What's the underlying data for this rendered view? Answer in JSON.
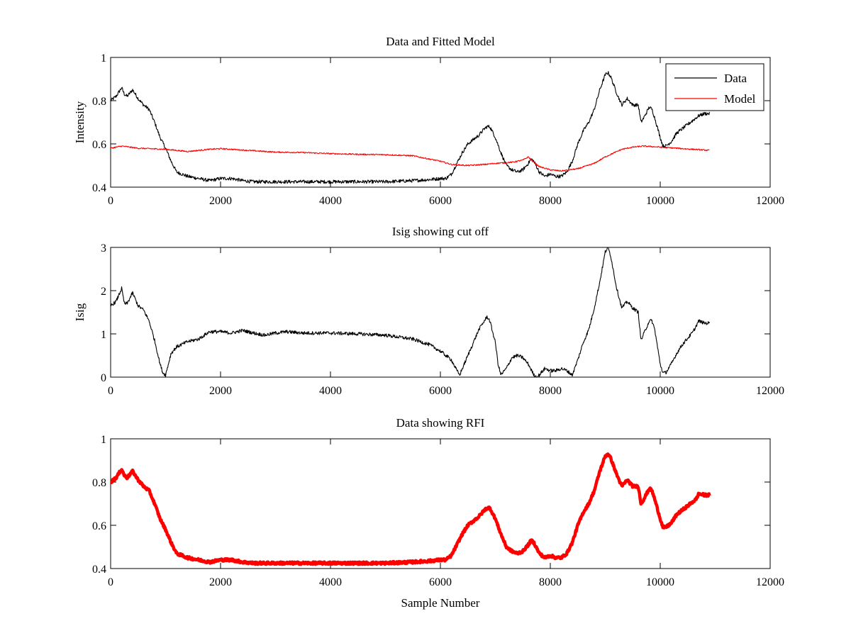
{
  "chart_data": [
    {
      "type": "line",
      "title": "Data and Fitted Model",
      "xlabel": "",
      "ylabel": "Intensity",
      "xlim": [
        0,
        12000
      ],
      "ylim": [
        0.4,
        1
      ],
      "xticks": [
        0,
        2000,
        4000,
        6000,
        8000,
        10000,
        12000
      ],
      "yticks": [
        0.4,
        0.6,
        0.8,
        1
      ],
      "ytick_labels": [
        "0.4",
        "0.6",
        "0.8",
        "1"
      ],
      "grid": false,
      "legend": "top-right",
      "series": [
        {
          "name": "Data",
          "color": "#000000",
          "noise": 0.008,
          "x": [
            0,
            100,
            200,
            250,
            300,
            400,
            500,
            600,
            700,
            800,
            900,
            1000,
            1100,
            1200,
            1400,
            1600,
            1800,
            2000,
            2200,
            2400,
            2600,
            3000,
            3500,
            4000,
            4500,
            5000,
            5500,
            5800,
            6000,
            6100,
            6200,
            6300,
            6400,
            6500,
            6600,
            6700,
            6800,
            6850,
            6900,
            7000,
            7100,
            7200,
            7300,
            7400,
            7500,
            7600,
            7650,
            7700,
            7800,
            7900,
            8000,
            8100,
            8200,
            8300,
            8400,
            8500,
            8600,
            8700,
            8800,
            8900,
            9000,
            9050,
            9100,
            9200,
            9300,
            9400,
            9500,
            9600,
            9650,
            9700,
            9800,
            9850,
            9900,
            10000,
            10050,
            10100,
            10200,
            10300,
            10400,
            10500,
            10600,
            10700,
            10800,
            10900
          ],
          "y": [
            0.8,
            0.82,
            0.86,
            0.83,
            0.82,
            0.85,
            0.81,
            0.78,
            0.76,
            0.7,
            0.63,
            0.58,
            0.52,
            0.47,
            0.45,
            0.44,
            0.43,
            0.44,
            0.44,
            0.43,
            0.425,
            0.425,
            0.425,
            0.425,
            0.425,
            0.425,
            0.43,
            0.435,
            0.44,
            0.44,
            0.46,
            0.51,
            0.56,
            0.6,
            0.62,
            0.64,
            0.67,
            0.68,
            0.68,
            0.63,
            0.56,
            0.5,
            0.48,
            0.47,
            0.48,
            0.51,
            0.53,
            0.52,
            0.47,
            0.45,
            0.46,
            0.45,
            0.45,
            0.47,
            0.52,
            0.6,
            0.66,
            0.7,
            0.76,
            0.85,
            0.92,
            0.93,
            0.91,
            0.84,
            0.78,
            0.81,
            0.78,
            0.78,
            0.7,
            0.72,
            0.77,
            0.76,
            0.72,
            0.63,
            0.59,
            0.59,
            0.61,
            0.65,
            0.67,
            0.69,
            0.71,
            0.73,
            0.74,
            0.74
          ]
        },
        {
          "name": "Model",
          "color": "#ff0000",
          "noise": 0.003,
          "x": [
            0,
            200,
            500,
            1000,
            1200,
            1400,
            1800,
            2000,
            2200,
            2500,
            3000,
            3500,
            4000,
            4500,
            5000,
            5500,
            6000,
            6200,
            6500,
            6800,
            7000,
            7300,
            7500,
            7600,
            7700,
            7800,
            8000,
            8200,
            8500,
            8800,
            9000,
            9300,
            9500,
            9700,
            10000,
            10300,
            10600,
            10900
          ],
          "y": [
            0.58,
            0.59,
            0.58,
            0.575,
            0.57,
            0.565,
            0.575,
            0.578,
            0.575,
            0.57,
            0.562,
            0.56,
            0.555,
            0.552,
            0.55,
            0.545,
            0.52,
            0.505,
            0.5,
            0.505,
            0.51,
            0.515,
            0.525,
            0.54,
            0.515,
            0.495,
            0.48,
            0.475,
            0.485,
            0.51,
            0.54,
            0.575,
            0.585,
            0.59,
            0.585,
            0.58,
            0.575,
            0.57
          ]
        }
      ]
    },
    {
      "type": "line",
      "title": "Isig showing cut off",
      "xlabel": "",
      "ylabel": "Isig",
      "xlim": [
        0,
        12000
      ],
      "ylim": [
        0,
        3
      ],
      "xticks": [
        0,
        2000,
        4000,
        6000,
        8000,
        10000,
        12000
      ],
      "yticks": [
        0,
        1,
        2,
        3
      ],
      "ytick_labels": [
        "0",
        "1",
        "2",
        "3"
      ],
      "grid": false,
      "series": [
        {
          "color": "#000000",
          "noise": 0.04,
          "x": [
            0,
            100,
            200,
            250,
            300,
            400,
            500,
            600,
            700,
            800,
            900,
            950,
            1000,
            1050,
            1100,
            1200,
            1400,
            1600,
            1800,
            2000,
            2200,
            2400,
            2600,
            2800,
            3000,
            3200,
            3500,
            4000,
            4500,
            5000,
            5500,
            5800,
            6000,
            6200,
            6300,
            6350,
            6400,
            6500,
            6600,
            6700,
            6800,
            6850,
            6900,
            7000,
            7050,
            7100,
            7200,
            7300,
            7400,
            7500,
            7600,
            7700,
            7750,
            7800,
            7900,
            8000,
            8100,
            8200,
            8300,
            8400,
            8500,
            8600,
            8700,
            8800,
            8900,
            9000,
            9050,
            9100,
            9200,
            9300,
            9400,
            9500,
            9600,
            9650,
            9700,
            9800,
            9850,
            9900,
            10000,
            10050,
            10100,
            10200,
            10300,
            10400,
            10500,
            10600,
            10700,
            10800,
            10900
          ],
          "y": [
            1.65,
            1.75,
            2.05,
            1.7,
            1.7,
            1.95,
            1.65,
            1.55,
            1.3,
            0.85,
            0.3,
            0.1,
            0.05,
            0.3,
            0.55,
            0.7,
            0.82,
            0.88,
            1.05,
            1.05,
            1.02,
            1.08,
            1.02,
            0.97,
            1.02,
            1.05,
            1.02,
            1.02,
            1.0,
            0.97,
            0.88,
            0.75,
            0.6,
            0.4,
            0.15,
            0.05,
            0.2,
            0.5,
            0.8,
            1.1,
            1.3,
            1.4,
            1.3,
            0.8,
            0.3,
            0.05,
            0.2,
            0.45,
            0.5,
            0.45,
            0.3,
            0.05,
            0.0,
            0.05,
            0.2,
            0.15,
            0.15,
            0.2,
            0.15,
            0.05,
            0.4,
            0.8,
            1.1,
            1.6,
            2.2,
            2.9,
            3.0,
            2.8,
            2.1,
            1.6,
            1.75,
            1.6,
            1.5,
            0.85,
            1.0,
            1.3,
            1.3,
            1.1,
            0.3,
            0.1,
            0.1,
            0.3,
            0.55,
            0.75,
            0.9,
            1.05,
            1.3,
            1.25,
            1.25
          ]
        }
      ]
    },
    {
      "type": "line",
      "title": "Data showing RFI",
      "xlabel": "Sample Number",
      "ylabel": "",
      "xlim": [
        0,
        12000
      ],
      "ylim": [
        0.4,
        1
      ],
      "xticks": [
        0,
        2000,
        4000,
        6000,
        8000,
        10000,
        12000
      ],
      "yticks": [
        0.4,
        0.6,
        0.8,
        1
      ],
      "ytick_labels": [
        "0.4",
        "0.6",
        "0.8",
        "1"
      ],
      "grid": false,
      "series": [
        {
          "color": "#ff0000",
          "noise": 0.006,
          "x": [
            0,
            100,
            200,
            250,
            300,
            400,
            500,
            600,
            700,
            800,
            900,
            1000,
            1100,
            1200,
            1400,
            1600,
            1800,
            2000,
            2200,
            2400,
            2600,
            3000,
            3500,
            4000,
            4500,
            5000,
            5500,
            5800,
            6000,
            6100,
            6200,
            6300,
            6400,
            6500,
            6600,
            6700,
            6800,
            6850,
            6900,
            7000,
            7100,
            7200,
            7300,
            7400,
            7500,
            7600,
            7650,
            7700,
            7800,
            7900,
            8000,
            8100,
            8200,
            8300,
            8400,
            8500,
            8600,
            8700,
            8800,
            8900,
            9000,
            9050,
            9100,
            9200,
            9300,
            9400,
            9500,
            9600,
            9650,
            9700,
            9800,
            9850,
            9900,
            10000,
            10050,
            10100,
            10200,
            10300,
            10400,
            10500,
            10600,
            10650,
            10700,
            10800,
            10900
          ],
          "y": [
            0.8,
            0.82,
            0.86,
            0.83,
            0.82,
            0.85,
            0.81,
            0.78,
            0.76,
            0.7,
            0.63,
            0.58,
            0.52,
            0.47,
            0.45,
            0.44,
            0.43,
            0.44,
            0.44,
            0.43,
            0.425,
            0.425,
            0.425,
            0.425,
            0.425,
            0.425,
            0.43,
            0.435,
            0.44,
            0.44,
            0.46,
            0.51,
            0.56,
            0.6,
            0.62,
            0.64,
            0.67,
            0.68,
            0.68,
            0.63,
            0.56,
            0.5,
            0.48,
            0.47,
            0.48,
            0.51,
            0.53,
            0.52,
            0.47,
            0.45,
            0.46,
            0.45,
            0.45,
            0.47,
            0.52,
            0.6,
            0.66,
            0.7,
            0.76,
            0.85,
            0.92,
            0.93,
            0.91,
            0.84,
            0.78,
            0.81,
            0.78,
            0.78,
            0.7,
            0.72,
            0.77,
            0.76,
            0.72,
            0.63,
            0.59,
            0.59,
            0.61,
            0.65,
            0.67,
            0.69,
            0.71,
            0.72,
            0.745,
            0.74,
            0.74
          ]
        }
      ]
    }
  ]
}
